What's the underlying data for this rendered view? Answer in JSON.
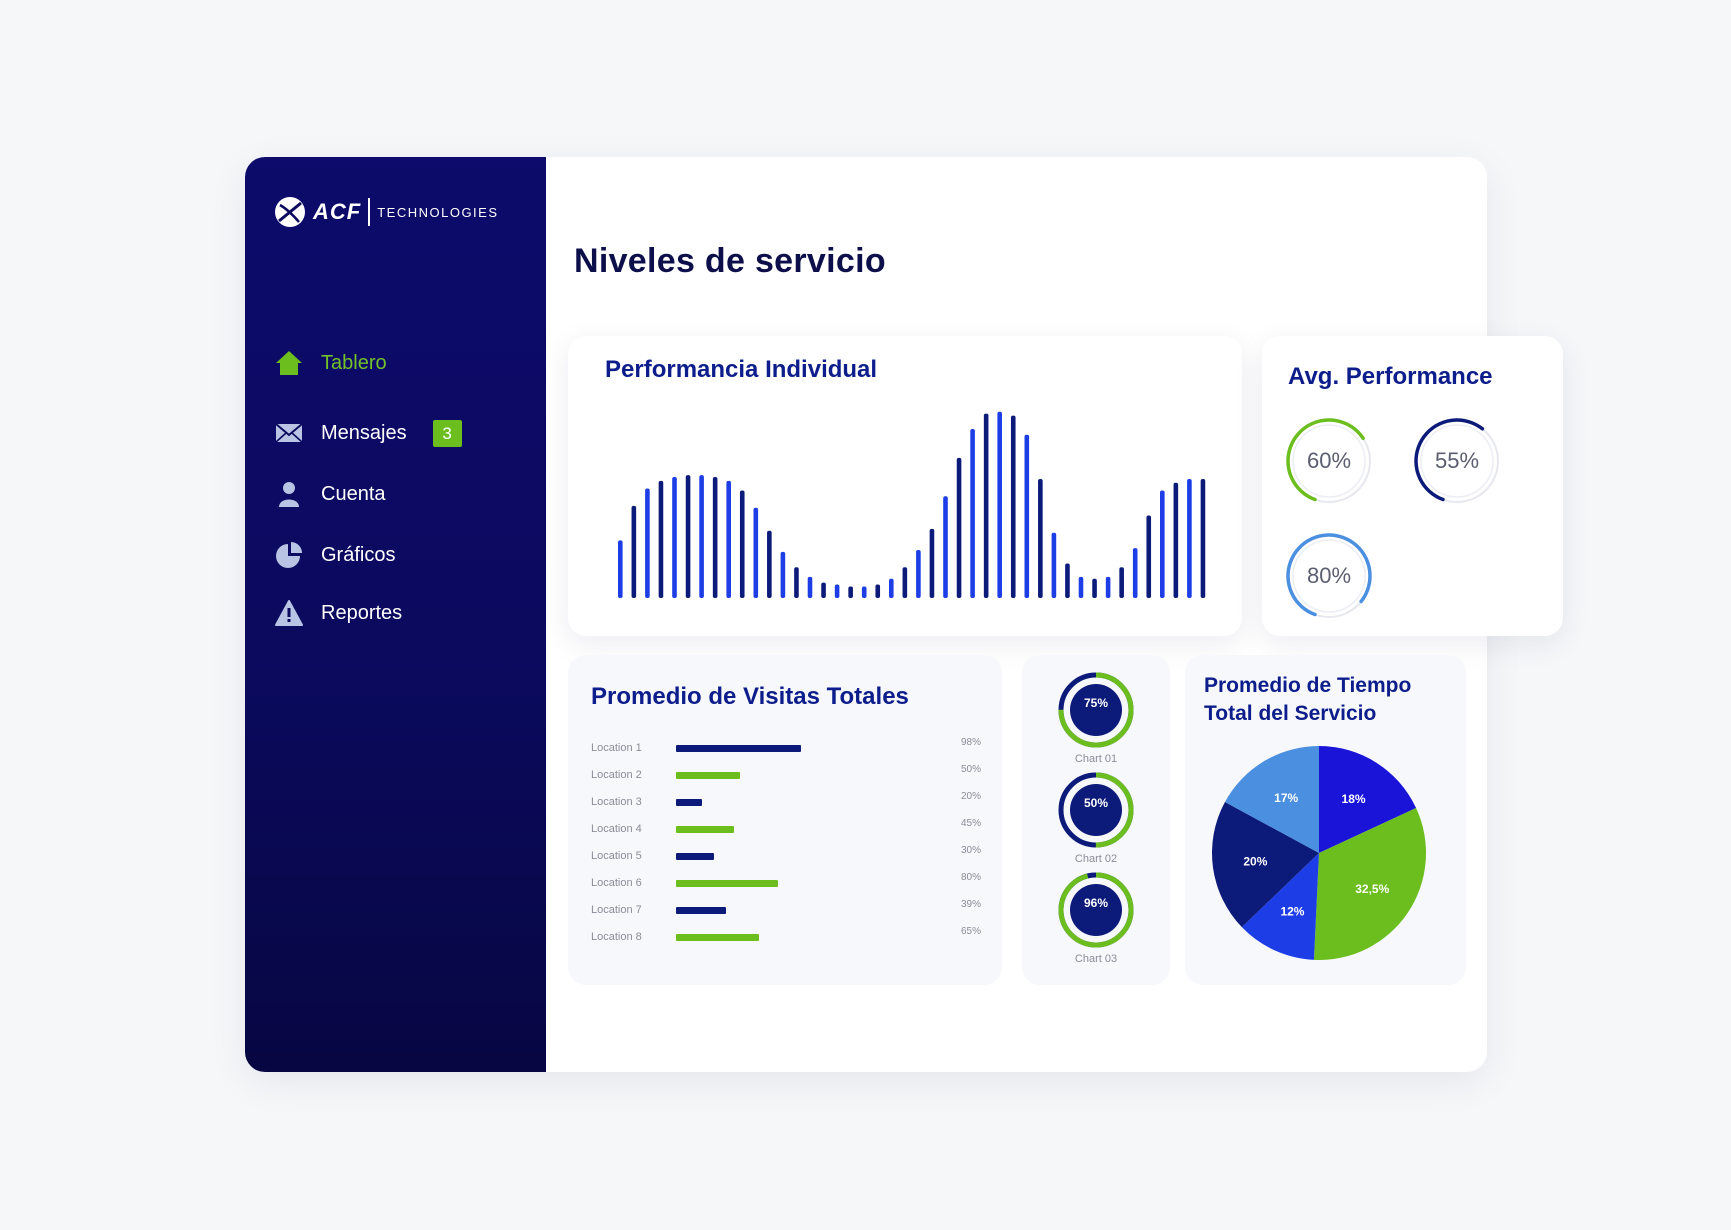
{
  "brand": {
    "name": "ACF",
    "sub": "TECHNOLOGIES"
  },
  "nav": {
    "items": [
      {
        "label": "Tablero",
        "icon": "home-icon",
        "active": true
      },
      {
        "label": "Mensajes",
        "icon": "envelope-icon",
        "badge": "3"
      },
      {
        "label": "Cuenta",
        "icon": "user-icon"
      },
      {
        "label": "Gráficos",
        "icon": "pie-chart-icon"
      },
      {
        "label": "Reportes",
        "icon": "warning-icon"
      }
    ]
  },
  "page": {
    "title": "Niveles de servicio"
  },
  "colors": {
    "navy": "#0c1a7a",
    "blue": "#1d3ee6",
    "green": "#6cbe1f",
    "sky": "#4a8fe0",
    "sidebar": "#0b0a5e"
  },
  "performance": {
    "title": "Performancia Individual"
  },
  "avg_performance": {
    "title": "Avg. Performance",
    "rings": [
      {
        "value": "60%",
        "color": "#6cbe1f"
      },
      {
        "value": "55%",
        "color": "#0c1a7a"
      },
      {
        "value": "80%",
        "color": "#4a8fe0"
      }
    ]
  },
  "visits": {
    "title": "Promedio de Visitas Totales",
    "rows": [
      {
        "label": "Location 1",
        "pct": "98%"
      },
      {
        "label": "Location 2",
        "pct": "50%"
      },
      {
        "label": "Location 3",
        "pct": "20%"
      },
      {
        "label": "Location 4",
        "pct": "45%"
      },
      {
        "label": "Location 5",
        "pct": "30%"
      },
      {
        "label": "Location 6",
        "pct": "80%"
      },
      {
        "label": "Location 7",
        "pct": "39%"
      },
      {
        "label": "Location 8",
        "pct": "65%"
      }
    ]
  },
  "mini_charts": [
    {
      "value": "75%",
      "label": "Chart 01"
    },
    {
      "value": "50%",
      "label": "Chart 02"
    },
    {
      "value": "96%",
      "label": "Chart 03"
    }
  ],
  "service_time": {
    "title": "Promedio de Tiempo Total del Servicio"
  },
  "chart_data": [
    {
      "type": "bar",
      "title": "Performancia Individual",
      "values": [
        30,
        48,
        57,
        61,
        63,
        64,
        64,
        63,
        61,
        56,
        47,
        35,
        24,
        16,
        11,
        8,
        7,
        6,
        6,
        7,
        10,
        16,
        25,
        36,
        53,
        73,
        88,
        96,
        97,
        95,
        85,
        62,
        34,
        18,
        11,
        10,
        11,
        16,
        26,
        43,
        56,
        60,
        62,
        62
      ],
      "colors": [
        "#1d3ee6",
        "#0c1a7a"
      ]
    },
    {
      "type": "bar",
      "title": "Promedio de Visitas Totales",
      "categories": [
        "Location 1",
        "Location 2",
        "Location 3",
        "Location 4",
        "Location 5",
        "Location 6",
        "Location 7",
        "Location 8"
      ],
      "values": [
        98,
        50,
        20,
        45,
        30,
        80,
        39,
        65
      ],
      "colors": [
        "#0c1a7a",
        "#6cbe1f"
      ]
    },
    {
      "type": "pie",
      "title": "Promedio de Tiempo Total del Servicio",
      "slices": [
        {
          "label": "18%",
          "value": 18,
          "color": "#1a14d8"
        },
        {
          "label": "32,5%",
          "value": 32.5,
          "color": "#6cbe1f"
        },
        {
          "label": "12%",
          "value": 12,
          "color": "#1d3ee6"
        },
        {
          "label": "20%",
          "value": 20,
          "color": "#0c1a7a"
        },
        {
          "label": "17%",
          "value": 17,
          "color": "#4a8fe0"
        }
      ]
    }
  ]
}
